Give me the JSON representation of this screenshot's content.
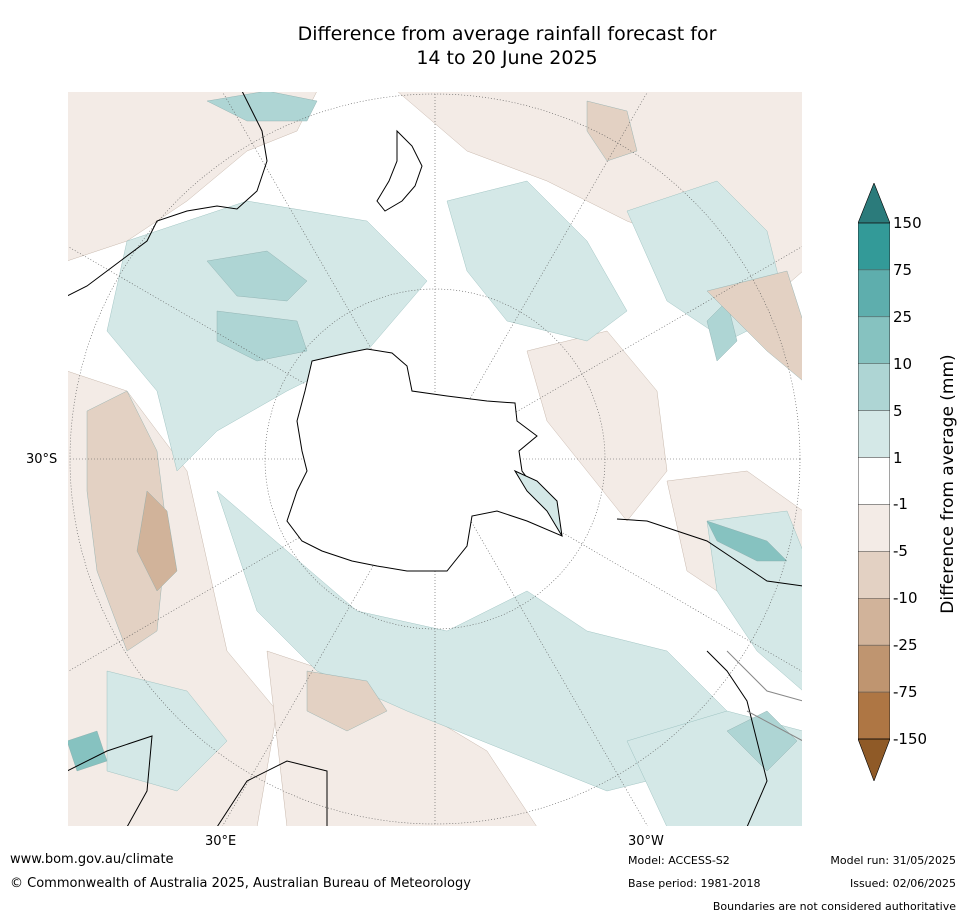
{
  "title_line1": "Difference from average rainfall forecast for",
  "title_line2": "14 to 20 June 2025",
  "labels": {
    "lat_30s": "30°S",
    "lon_30e": "30°E",
    "lon_30w": "30°W"
  },
  "colorbar": {
    "title": "Difference from average (mm)",
    "ticks": [
      "150",
      "75",
      "25",
      "10",
      "5",
      "1",
      "-1",
      "-5",
      "-10",
      "-25",
      "-75",
      "-150"
    ],
    "colors": {
      "wet_extreme": "#2b7b7b",
      "wet_150": "#339a98",
      "wet_75": "#5eaead",
      "wet_25": "#86c2c0",
      "wet_10": "#aed5d4",
      "wet_5": "#d4e8e7",
      "neutral": "#ffffff",
      "dry_1": "#f3ebe6",
      "dry_5": "#e3d1c3",
      "dry_10": "#d1b39a",
      "dry_25": "#bf9570",
      "dry_75": "#ae7644",
      "dry_extreme": "#8f5a27"
    }
  },
  "footer": {
    "website": "www.bom.gov.au/climate",
    "copyright": "© Commonwealth of Australia 2025, Australian Bureau of Meteorology",
    "model": "Model: ACCESS-S2",
    "base_period": "Base period: 1981-2018",
    "model_run": "Model run: 31/05/2025",
    "issued": "Issued: 02/06/2025",
    "disclaimer": "Boundaries are not considered authoritative"
  }
}
